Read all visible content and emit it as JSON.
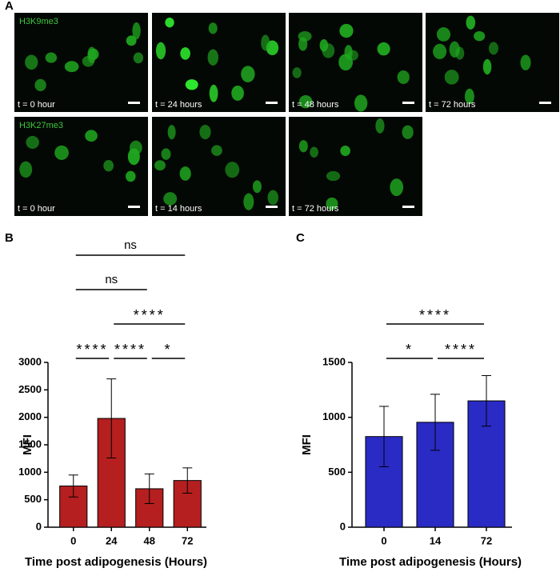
{
  "panel_labels": [
    "A",
    "B",
    "C"
  ],
  "panel_a": {
    "rows": [
      {
        "label": "H3K9me3",
        "images": [
          "t = 0 hour",
          "t = 24 hours",
          "t = 48 hours",
          "t = 72 hours"
        ]
      },
      {
        "label": "H3K27me3",
        "images": [
          "t = 0 hour",
          "t = 14 hours",
          "t = 72 hours"
        ]
      }
    ]
  },
  "chart_data": [
    {
      "type": "bar",
      "categories": [
        "0",
        "24",
        "48",
        "72"
      ],
      "values": [
        750,
        1980,
        700,
        850
      ],
      "errors": [
        200,
        720,
        270,
        230
      ],
      "color": "#b51f1f",
      "ylim": [
        0,
        3000
      ],
      "yticks": [
        0,
        500,
        1000,
        1500,
        2000,
        2500,
        3000
      ],
      "x_label": "Time post adipogenesis (Hours)",
      "y_label": "MFI",
      "comparisons": [
        {
          "groups": [
            "48",
            "72"
          ],
          "label": "*"
        },
        {
          "groups": [
            "24",
            "48"
          ],
          "label": "****"
        },
        {
          "groups": [
            "24",
            "72"
          ],
          "label": "****"
        },
        {
          "groups": [
            "0",
            "24"
          ],
          "label": "****"
        },
        {
          "groups": [
            "0",
            "48"
          ],
          "label": "ns"
        },
        {
          "groups": [
            "0",
            "72"
          ],
          "label": "ns"
        }
      ]
    },
    {
      "type": "bar",
      "categories": [
        "0",
        "14",
        "72"
      ],
      "values": [
        825,
        955,
        1150
      ],
      "errors": [
        275,
        255,
        230
      ],
      "color": "#2a2ac4",
      "ylim": [
        0,
        1500
      ],
      "yticks": [
        0,
        500,
        1000,
        1500
      ],
      "x_label": "Time post adipogenesis (Hours)",
      "y_label": "MFI",
      "comparisons": [
        {
          "groups": [
            "14",
            "72"
          ],
          "label": "****"
        },
        {
          "groups": [
            "0",
            "14"
          ],
          "label": "*"
        },
        {
          "groups": [
            "0",
            "72"
          ],
          "label": "****"
        }
      ]
    }
  ]
}
